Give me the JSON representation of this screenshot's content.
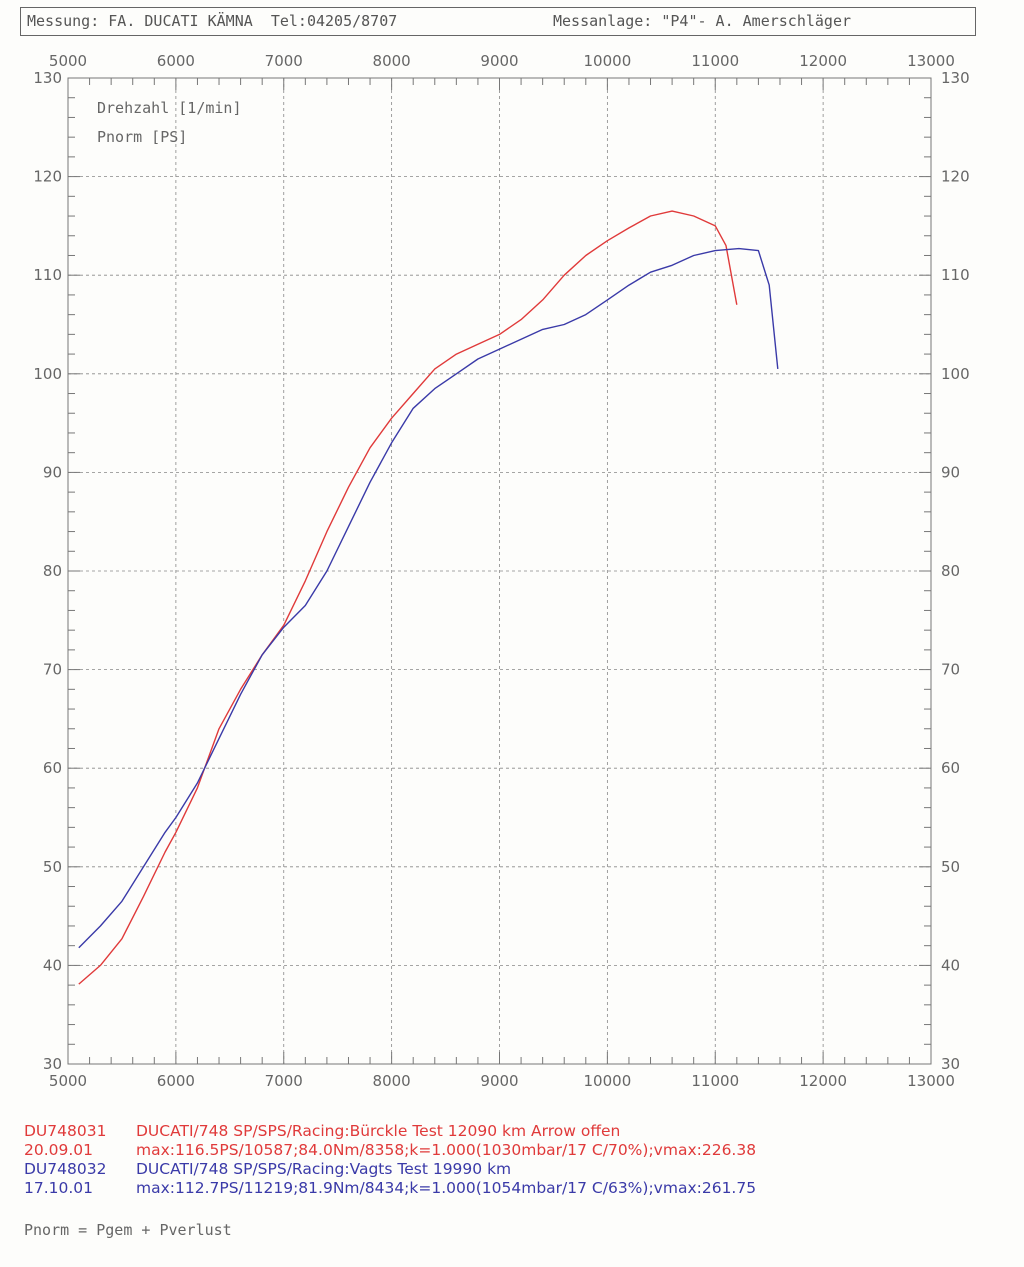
{
  "header": {
    "left": "Messung: FA. DUCATI KÄMNA  Tel:04205/8707",
    "right": "Messanlage: \"P4\"- A. Amerschläger"
  },
  "legend": [
    "Drehzahl [1/min]",
    "Pnorm [PS]"
  ],
  "chart_data": {
    "type": "line",
    "xlim": [
      5000,
      13000
    ],
    "ylim": [
      30,
      130
    ],
    "x_ticks": [
      "5000",
      "6000",
      "7000",
      "8000",
      "9000",
      "10000",
      "11000",
      "12000",
      "13000"
    ],
    "y_ticks": [
      "30",
      "40",
      "50",
      "60",
      "70",
      "80",
      "90",
      "100",
      "110",
      "120",
      "130"
    ],
    "grid": true,
    "series": [
      {
        "name": "DU748031",
        "color": "#e03a3a",
        "points": [
          [
            5100,
            38.1
          ],
          [
            5300,
            40
          ],
          [
            5500,
            42.7
          ],
          [
            5700,
            47
          ],
          [
            5900,
            51.5
          ],
          [
            6000,
            53.5
          ],
          [
            6200,
            58
          ],
          [
            6400,
            64
          ],
          [
            6600,
            68
          ],
          [
            6800,
            71.5
          ],
          [
            7000,
            74.5
          ],
          [
            7200,
            79
          ],
          [
            7400,
            84
          ],
          [
            7600,
            88.5
          ],
          [
            7800,
            92.5
          ],
          [
            8000,
            95.5
          ],
          [
            8200,
            98
          ],
          [
            8400,
            100.5
          ],
          [
            8600,
            102
          ],
          [
            8800,
            103
          ],
          [
            9000,
            104
          ],
          [
            9200,
            105.5
          ],
          [
            9400,
            107.5
          ],
          [
            9600,
            110
          ],
          [
            9800,
            112
          ],
          [
            10000,
            113.5
          ],
          [
            10200,
            114.8
          ],
          [
            10400,
            116
          ],
          [
            10600,
            116.5
          ],
          [
            10800,
            116
          ],
          [
            11000,
            115
          ],
          [
            11100,
            113
          ],
          [
            11200,
            107
          ]
        ]
      },
      {
        "name": "DU748032",
        "color": "#3a3aa8",
        "points": [
          [
            5100,
            41.8
          ],
          [
            5300,
            44
          ],
          [
            5500,
            46.5
          ],
          [
            5700,
            50
          ],
          [
            5900,
            53.5
          ],
          [
            6000,
            55
          ],
          [
            6200,
            58.5
          ],
          [
            6400,
            63
          ],
          [
            6600,
            67.5
          ],
          [
            6800,
            71.5
          ],
          [
            7000,
            74.3
          ],
          [
            7200,
            76.5
          ],
          [
            7400,
            80
          ],
          [
            7600,
            84.5
          ],
          [
            7800,
            89
          ],
          [
            8000,
            93
          ],
          [
            8200,
            96.5
          ],
          [
            8400,
            98.5
          ],
          [
            8600,
            100
          ],
          [
            8800,
            101.5
          ],
          [
            9000,
            102.5
          ],
          [
            9200,
            103.5
          ],
          [
            9400,
            104.5
          ],
          [
            9600,
            105
          ],
          [
            9800,
            106
          ],
          [
            10000,
            107.5
          ],
          [
            10200,
            109
          ],
          [
            10400,
            110.3
          ],
          [
            10600,
            111
          ],
          [
            10800,
            112
          ],
          [
            11000,
            112.5
          ],
          [
            11219,
            112.7
          ],
          [
            11400,
            112.5
          ],
          [
            11500,
            109
          ],
          [
            11580,
            100.5
          ]
        ]
      }
    ]
  },
  "footer": {
    "lines": [
      {
        "code": "DU748031",
        "text": "DUCATI/748 SP/SPS/Racing:Bürckle Test 12090 km Arrow offen",
        "color": "red"
      },
      {
        "code": "20.09.01",
        "text": "max:116.5PS/10587;84.0Nm/8358;k=1.000(1030mbar/17 C/70%);vmax:226.38",
        "color": "red"
      },
      {
        "code": "DU748032",
        "text": "DUCATI/748 SP/SPS/Racing:Vagts Test 19990 km",
        "color": "blue"
      },
      {
        "code": "17.10.01",
        "text": "max:112.7PS/11219;81.9Nm/8434;k=1.000(1054mbar/17 C/63%);vmax:261.75",
        "color": "blue"
      }
    ],
    "note": "Pnorm = Pgem + Pverlust"
  }
}
